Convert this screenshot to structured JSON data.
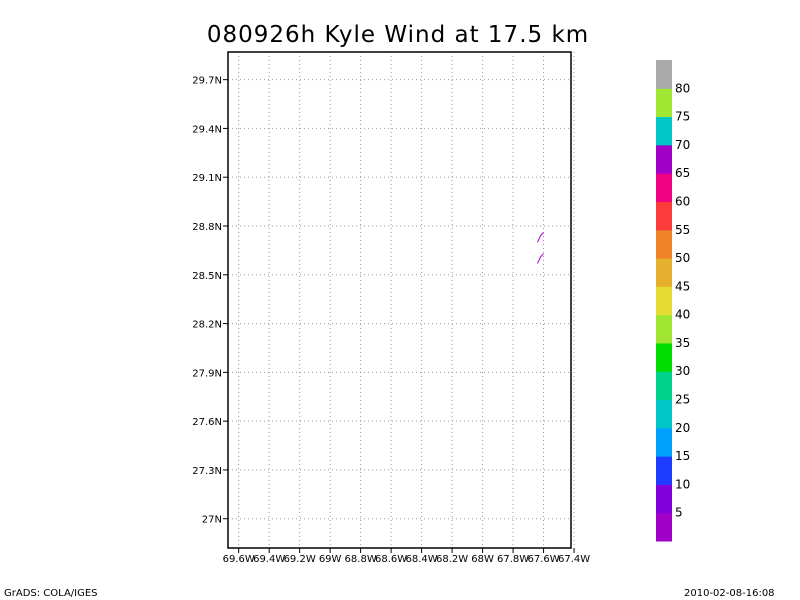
{
  "chart_data": {
    "type": "map-contour",
    "title": "080926h Kyle Wind at 17.5 km",
    "x_ticks": [
      "69.6W",
      "69.4W",
      "69.2W",
      "69W",
      "68.8W",
      "68.6W",
      "68.4W",
      "68.2W",
      "68W",
      "67.8W",
      "67.6W",
      "67.4W"
    ],
    "x_values": [
      -69.6,
      -69.4,
      -69.2,
      -69.0,
      -68.8,
      -68.6,
      -68.4,
      -68.2,
      -68.0,
      -67.8,
      -67.6,
      -67.4
    ],
    "y_ticks": [
      "29.7N",
      "29.4N",
      "29.1N",
      "28.8N",
      "28.5N",
      "28.2N",
      "27.9N",
      "27.6N",
      "27.3N",
      "27N"
    ],
    "y_values": [
      29.7,
      29.4,
      29.1,
      28.8,
      28.5,
      28.2,
      27.9,
      27.6,
      27.3,
      27.0
    ],
    "xlim": [
      -69.67,
      -67.42
    ],
    "ylim": [
      26.82,
      29.87
    ],
    "grid": true,
    "contours": [
      {
        "color": "#a000c8",
        "points": [
          [
            -67.64,
            28.7
          ],
          [
            -67.62,
            28.74
          ],
          [
            -67.6,
            28.76
          ]
        ]
      },
      {
        "color": "#a000c8",
        "points": [
          [
            -67.64,
            28.57
          ],
          [
            -67.62,
            28.61
          ],
          [
            -67.6,
            28.63
          ]
        ]
      }
    ],
    "colorbar": {
      "labels": [
        "5",
        "10",
        "15",
        "20",
        "25",
        "30",
        "35",
        "40",
        "45",
        "50",
        "55",
        "60",
        "65",
        "70",
        "75",
        "80"
      ],
      "colors": [
        "#a000c8",
        "#8200dc",
        "#1e3cff",
        "#00a0ff",
        "#00c8c8",
        "#00d28c",
        "#00dc00",
        "#a0e632",
        "#e6dc32",
        "#e6af2d",
        "#f08228",
        "#fa3c3c",
        "#f00082",
        "#a000c8",
        "#00c8c8",
        "#a0e632",
        "#aaaaaa"
      ]
    }
  },
  "footer": {
    "left": "GrADS: COLA/IGES",
    "right": "2010-02-08-16:08"
  }
}
